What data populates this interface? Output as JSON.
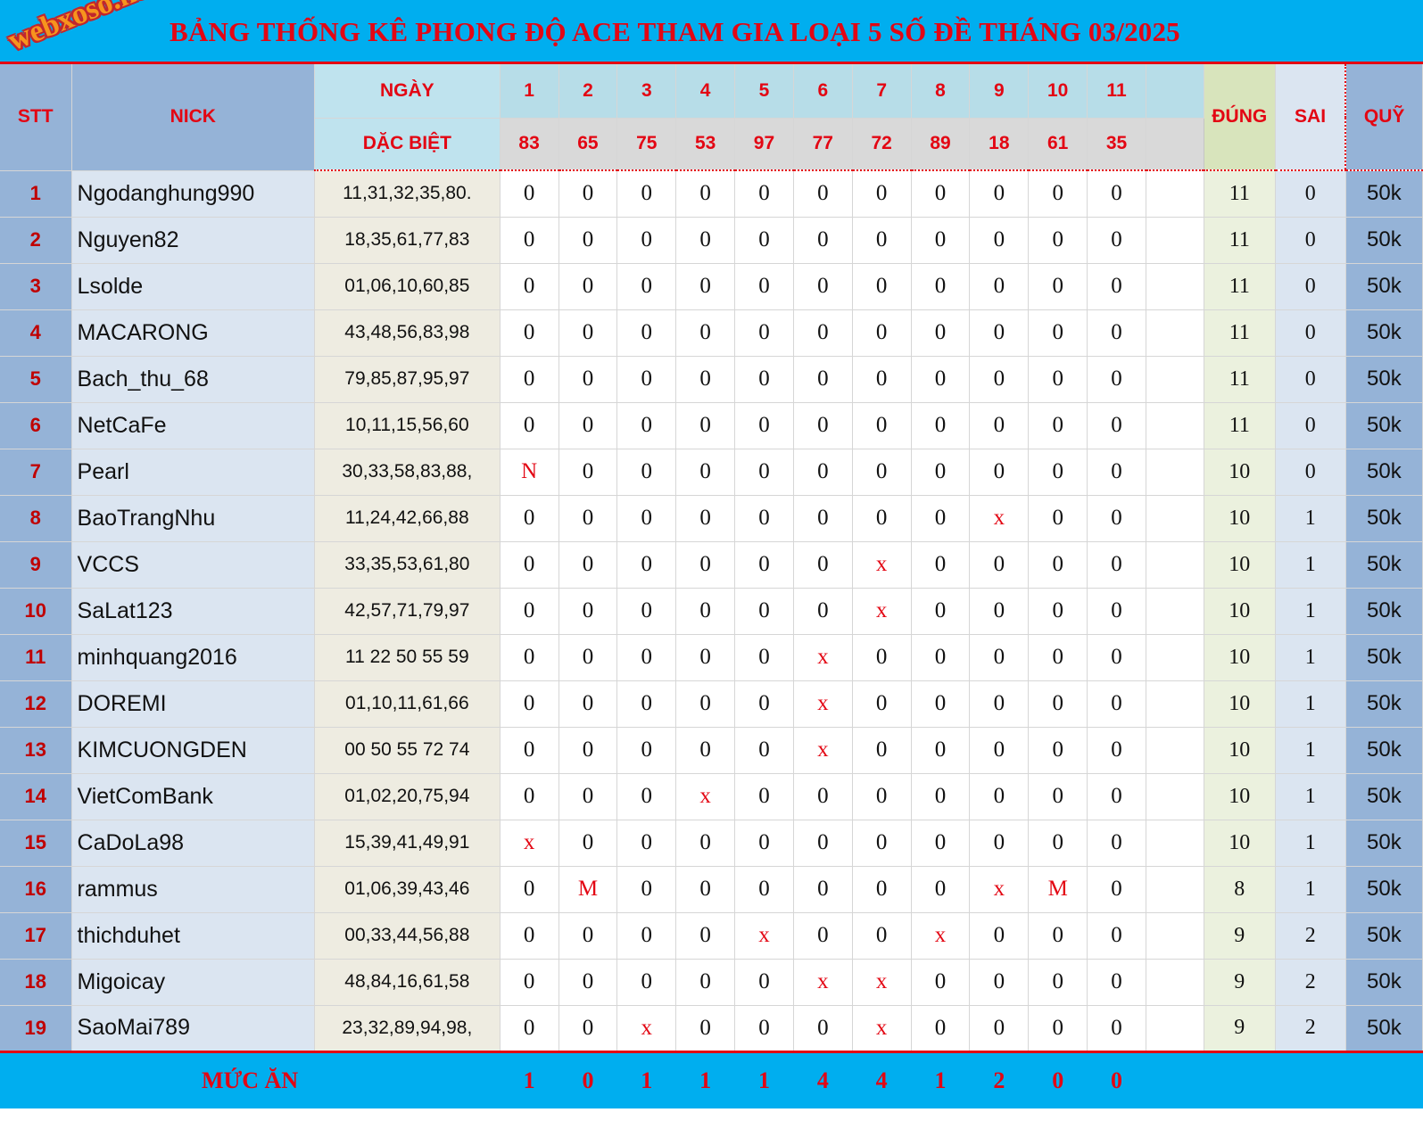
{
  "logo_text": "webxoso.net",
  "title": "BẢNG THỐNG KÊ PHONG ĐỘ ACE THAM GIA LOẠI 5 SỐ ĐỀ THÁNG 03/2025",
  "headers": {
    "stt": "STT",
    "nick": "NICK",
    "ngay": "NGÀY",
    "dac_biet": "DẶC BIỆT",
    "dung": "ĐÚNG",
    "sai": "SAI",
    "quy": "QUỸ"
  },
  "day_numbers": [
    "1",
    "2",
    "3",
    "4",
    "5",
    "6",
    "7",
    "8",
    "9",
    "10",
    "11"
  ],
  "special_numbers": [
    "83",
    "65",
    "75",
    "53",
    "97",
    "77",
    "72",
    "89",
    "18",
    "61",
    "35"
  ],
  "rows": [
    {
      "stt": "1",
      "nick": "Ngodanghung990",
      "numbers": "11,31,32,35,80.",
      "days": [
        "0",
        "0",
        "0",
        "0",
        "0",
        "0",
        "0",
        "0",
        "0",
        "0",
        "0"
      ],
      "dung": "11",
      "sai": "0",
      "quy": "50k"
    },
    {
      "stt": "2",
      "nick": "Nguyen82",
      "numbers": "18,35,61,77,83",
      "days": [
        "0",
        "0",
        "0",
        "0",
        "0",
        "0",
        "0",
        "0",
        "0",
        "0",
        "0"
      ],
      "dung": "11",
      "sai": "0",
      "quy": "50k"
    },
    {
      "stt": "3",
      "nick": "Lsolde",
      "numbers": "01,06,10,60,85",
      "days": [
        "0",
        "0",
        "0",
        "0",
        "0",
        "0",
        "0",
        "0",
        "0",
        "0",
        "0"
      ],
      "dung": "11",
      "sai": "0",
      "quy": "50k"
    },
    {
      "stt": "4",
      "nick": "MACARONG",
      "numbers": "43,48,56,83,98",
      "days": [
        "0",
        "0",
        "0",
        "0",
        "0",
        "0",
        "0",
        "0",
        "0",
        "0",
        "0"
      ],
      "dung": "11",
      "sai": "0",
      "quy": "50k"
    },
    {
      "stt": "5",
      "nick": "Bach_thu_68",
      "numbers": "79,85,87,95,97",
      "days": [
        "0",
        "0",
        "0",
        "0",
        "0",
        "0",
        "0",
        "0",
        "0",
        "0",
        "0"
      ],
      "dung": "11",
      "sai": "0",
      "quy": "50k"
    },
    {
      "stt": "6",
      "nick": "NetCaFe",
      "numbers": "10,11,15,56,60",
      "days": [
        "0",
        "0",
        "0",
        "0",
        "0",
        "0",
        "0",
        "0",
        "0",
        "0",
        "0"
      ],
      "dung": "11",
      "sai": "0",
      "quy": "50k"
    },
    {
      "stt": "7",
      "nick": "Pearl",
      "numbers": "30,33,58,83,88,",
      "days": [
        "N",
        "0",
        "0",
        "0",
        "0",
        "0",
        "0",
        "0",
        "0",
        "0",
        "0"
      ],
      "dung": "10",
      "sai": "0",
      "quy": "50k"
    },
    {
      "stt": "8",
      "nick": "BaoTrangNhu",
      "numbers": "11,24,42,66,88",
      "days": [
        "0",
        "0",
        "0",
        "0",
        "0",
        "0",
        "0",
        "0",
        "x",
        "0",
        "0"
      ],
      "dung": "10",
      "sai": "1",
      "quy": "50k"
    },
    {
      "stt": "9",
      "nick": "VCCS",
      "numbers": "33,35,53,61,80",
      "days": [
        "0",
        "0",
        "0",
        "0",
        "0",
        "0",
        "x",
        "0",
        "0",
        "0",
        "0"
      ],
      "dung": "10",
      "sai": "1",
      "quy": "50k"
    },
    {
      "stt": "10",
      "nick": "SaLat123",
      "numbers": "42,57,71,79,97",
      "days": [
        "0",
        "0",
        "0",
        "0",
        "0",
        "0",
        "x",
        "0",
        "0",
        "0",
        "0"
      ],
      "dung": "10",
      "sai": "1",
      "quy": "50k"
    },
    {
      "stt": "11",
      "nick": "minhquang2016",
      "numbers": "11 22 50 55 59",
      "days": [
        "0",
        "0",
        "0",
        "0",
        "0",
        "x",
        "0",
        "0",
        "0",
        "0",
        "0"
      ],
      "dung": "10",
      "sai": "1",
      "quy": "50k"
    },
    {
      "stt": "12",
      "nick": "DOREMI",
      "numbers": "01,10,11,61,66",
      "days": [
        "0",
        "0",
        "0",
        "0",
        "0",
        "x",
        "0",
        "0",
        "0",
        "0",
        "0"
      ],
      "dung": "10",
      "sai": "1",
      "quy": "50k"
    },
    {
      "stt": "13",
      "nick": "KIMCUONGDEN",
      "numbers": "00 50 55 72 74",
      "days": [
        "0",
        "0",
        "0",
        "0",
        "0",
        "x",
        "0",
        "0",
        "0",
        "0",
        "0"
      ],
      "dung": "10",
      "sai": "1",
      "quy": "50k"
    },
    {
      "stt": "14",
      "nick": "VietComBank",
      "numbers": "01,02,20,75,94",
      "days": [
        "0",
        "0",
        "0",
        "x",
        "0",
        "0",
        "0",
        "0",
        "0",
        "0",
        "0"
      ],
      "dung": "10",
      "sai": "1",
      "quy": "50k"
    },
    {
      "stt": "15",
      "nick": "CaDoLa98",
      "numbers": "15,39,41,49,91",
      "days": [
        "x",
        "0",
        "0",
        "0",
        "0",
        "0",
        "0",
        "0",
        "0",
        "0",
        "0"
      ],
      "dung": "10",
      "sai": "1",
      "quy": "50k"
    },
    {
      "stt": "16",
      "nick": "rammus",
      "numbers": "01,06,39,43,46",
      "days": [
        "0",
        "M",
        "0",
        "0",
        "0",
        "0",
        "0",
        "0",
        "x",
        "M",
        "0"
      ],
      "dung": "8",
      "sai": "1",
      "quy": "50k"
    },
    {
      "stt": "17",
      "nick": "thichduhet",
      "numbers": "00,33,44,56,88",
      "days": [
        "0",
        "0",
        "0",
        "0",
        "x",
        "0",
        "0",
        "x",
        "0",
        "0",
        "0"
      ],
      "dung": "9",
      "sai": "2",
      "quy": "50k"
    },
    {
      "stt": "18",
      "nick": "Migoicay",
      "numbers": "48,84,16,61,58",
      "days": [
        "0",
        "0",
        "0",
        "0",
        "0",
        "x",
        "x",
        "0",
        "0",
        "0",
        "0"
      ],
      "dung": "9",
      "sai": "2",
      "quy": "50k"
    },
    {
      "stt": "19",
      "nick": "SaoMai789",
      "numbers": "23,32,89,94,98,",
      "days": [
        "0",
        "0",
        "x",
        "0",
        "0",
        "0",
        "x",
        "0",
        "0",
        "0",
        "0"
      ],
      "dung": "9",
      "sai": "2",
      "quy": "50k"
    }
  ],
  "footer": {
    "label": "MỨC ĂN",
    "values": [
      "1",
      "0",
      "1",
      "1",
      "1",
      "4",
      "4",
      "1",
      "2",
      "0",
      "0"
    ]
  },
  "colors": {
    "title_bar": "#00aeef",
    "title_text": "#e30613",
    "header_blue": "#95b3d7",
    "header_cyan": "#b7dde8",
    "header_grey": "#d9d9d9",
    "numbers_col": "#eeece1",
    "dung_col": "#ebf1de",
    "sai_col": "#dbe5f1",
    "mark_red": "#e30613"
  }
}
